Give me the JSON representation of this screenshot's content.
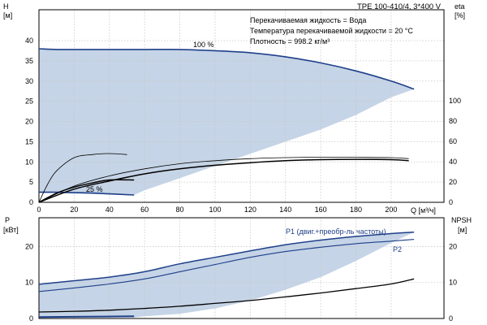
{
  "chart_data": [
    {
      "id": "upper",
      "type": "line",
      "title": "TPE 100-410/4, 3*400 V",
      "info_lines": [
        "Перекачиваемая жидкость = Вода",
        "Температура перекачиваемой жидкости = 20 °C",
        "Плотность = 998.2 кг/м³"
      ],
      "x_unit_label": "Q [м³/ч]",
      "xlim": [
        0,
        230
      ],
      "x_ticks": [
        "0",
        "20",
        "40",
        "60",
        "80",
        "100",
        "120",
        "140",
        "160",
        "180",
        "200"
      ],
      "left_axis": {
        "label_top": "H",
        "label_unit": "[м]",
        "ylim": [
          0,
          40
        ],
        "ticks": [
          "0",
          "5",
          "10",
          "15",
          "20",
          "25",
          "30",
          "35",
          "40"
        ]
      },
      "right_axis": {
        "label_top": "eta",
        "label_unit": "[%]",
        "ylim": [
          0,
          100
        ],
        "ticks": [
          "0",
          "20",
          "40",
          "60",
          "80",
          "100"
        ]
      },
      "grid": true,
      "annotations": [
        "100 %",
        "25 %"
      ],
      "colors": {
        "curve": "#1f3f8a",
        "envelope": "#c5d4e6",
        "light_region": "#e4ecf6",
        "eta": "#000000"
      },
      "envelope_region": {
        "x": [
          0,
          10,
          20,
          40,
          60,
          80,
          100,
          120,
          140,
          160,
          180,
          200,
          213,
          213,
          200,
          180,
          160,
          140,
          120,
          100,
          80,
          60,
          54,
          35,
          15,
          5,
          0
        ],
        "y": [
          38,
          37.8,
          37.8,
          37.8,
          37.8,
          37.8,
          37.5,
          37,
          36,
          34.5,
          32.5,
          30,
          28,
          28,
          26,
          21.6,
          18,
          15,
          12,
          9,
          6,
          3,
          1.8,
          2,
          2.2,
          2.4,
          2.6
        ]
      },
      "series": [
        {
          "name": "100 %",
          "axis": "left",
          "x": [
            0,
            10,
            20,
            40,
            60,
            80,
            100,
            120,
            140,
            160,
            180,
            200,
            213
          ],
          "y": [
            38,
            37.8,
            37.8,
            37.8,
            37.8,
            37.8,
            37.5,
            37,
            36,
            34.5,
            32.5,
            30,
            28
          ]
        },
        {
          "name": "25 %",
          "axis": "left",
          "x": [
            0,
            10,
            20,
            30,
            40,
            54
          ],
          "y": [
            2.5,
            2.5,
            2.4,
            2.3,
            2.1,
            1.8
          ]
        },
        {
          "axis": "right",
          "x": [
            0,
            5,
            10,
            20,
            30,
            40,
            50
          ],
          "y": [
            0,
            18,
            31,
            44,
            47,
            48,
            47
          ]
        },
        {
          "axis": "right",
          "x": [
            0,
            10,
            20,
            30,
            40,
            54
          ],
          "y": [
            0,
            9,
            15,
            19,
            22,
            22
          ]
        },
        {
          "axis": "right",
          "x": [
            0,
            20,
            40,
            60,
            80,
            100,
            120,
            140,
            160,
            180,
            200,
            210
          ],
          "y": [
            0,
            16,
            26,
            33,
            38,
            41,
            43,
            44,
            44.5,
            44.3,
            44,
            43
          ]
        },
        {
          "axis": "right",
          "x": [
            0,
            20,
            40,
            60,
            80,
            100,
            120,
            140,
            160,
            180,
            200,
            210
          ],
          "y": [
            0,
            13,
            21,
            28,
            33,
            36.5,
            39,
            41,
            42,
            42.3,
            42,
            41
          ]
        }
      ]
    },
    {
      "id": "lower",
      "type": "line",
      "xlim": [
        0,
        230
      ],
      "left_axis": {
        "label_top": "P",
        "label_unit": "[кВт]",
        "ylim": [
          0,
          28
        ],
        "ticks": [
          "0",
          "10",
          "20"
        ]
      },
      "right_axis": {
        "label_top": "NPSH",
        "label_unit": "[м]",
        "ylim": [
          0,
          28
        ],
        "ticks": [
          "0",
          "10",
          "20"
        ]
      },
      "grid": true,
      "legend": [
        "P1 (двиг.+преобр-ль частоты)",
        "P2"
      ],
      "envelope_region": {
        "x": [
          0,
          20,
          40,
          60,
          80,
          100,
          120,
          140,
          160,
          180,
          200,
          213,
          213,
          200,
          180,
          160,
          140,
          120,
          100,
          80,
          60,
          54,
          30,
          0
        ],
        "y": [
          9.5,
          10.5,
          11.5,
          13,
          15.2,
          17,
          18.8,
          20.5,
          21.8,
          22.8,
          23.6,
          24,
          24,
          21,
          16,
          11.5,
          8,
          5,
          2.8,
          1.3,
          0.6,
          0.3,
          0.3,
          0.3
        ]
      },
      "series": [
        {
          "name": "P1 (двиг.+преобр-ль частоты)",
          "axis": "left",
          "x": [
            0,
            20,
            40,
            60,
            80,
            100,
            120,
            140,
            160,
            180,
            200,
            213
          ],
          "y": [
            9.5,
            10.5,
            11.5,
            13,
            15.2,
            17,
            18.8,
            20.5,
            21.8,
            22.8,
            23.6,
            24
          ]
        },
        {
          "name": "P2",
          "axis": "left",
          "x": [
            0,
            20,
            40,
            60,
            80,
            100,
            120,
            140,
            160,
            180,
            200,
            213
          ],
          "y": [
            7.5,
            8.5,
            9.6,
            11,
            13,
            15,
            17,
            18.6,
            19.8,
            20.8,
            21.5,
            22
          ]
        },
        {
          "axis": "right",
          "x": [
            0,
            20,
            40,
            60,
            80,
            100,
            120,
            140,
            160,
            180,
            200,
            213
          ],
          "y": [
            1.8,
            2,
            2.3,
            2.8,
            3.4,
            4.2,
            5,
            6,
            7.1,
            8.3,
            9.6,
            11
          ]
        },
        {
          "axis": "left",
          "x": [
            0,
            54
          ],
          "y": [
            0.4,
            0.6
          ]
        }
      ]
    }
  ]
}
